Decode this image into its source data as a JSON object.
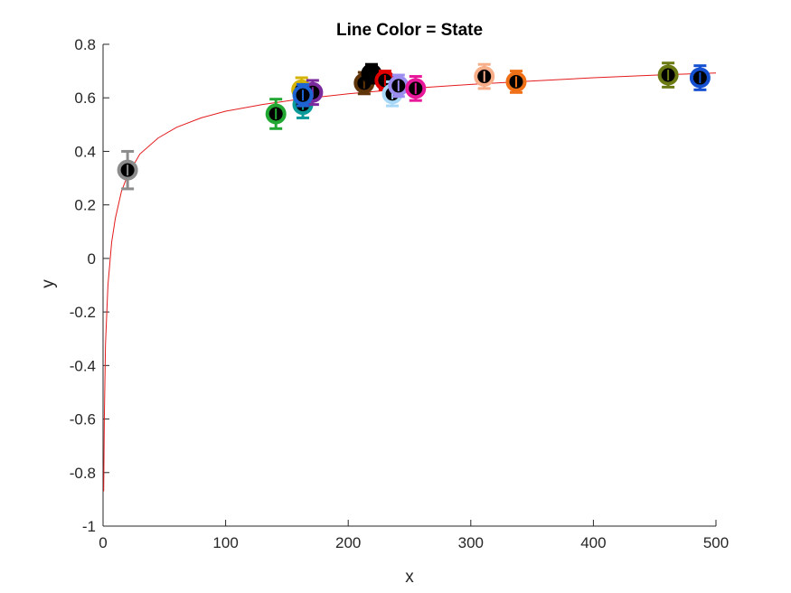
{
  "chart_data": {
    "type": "scatter",
    "title": "Line Color = State",
    "xlabel": "x",
    "ylabel": "y",
    "xlim": [
      0,
      500
    ],
    "ylim": [
      -1,
      0.8
    ],
    "xticks": [
      "0",
      "100",
      "200",
      "300",
      "400",
      "500"
    ],
    "yticks": [
      "-1",
      "-0.8",
      "-0.6",
      "-0.4",
      "-0.2",
      "0",
      "0.2",
      "0.4",
      "0.6",
      "0.8"
    ],
    "xtick_values": [
      0,
      100,
      200,
      300,
      400,
      500
    ],
    "ytick_values": [
      -1,
      -0.8,
      -0.6,
      -0.4,
      -0.2,
      0,
      0.2,
      0.4,
      0.6,
      0.8
    ],
    "grid": false,
    "fit_curve": {
      "color": "#e41a1c",
      "points": [
        [
          0.5,
          -0.87
        ],
        [
          1,
          -0.6
        ],
        [
          2,
          -0.32
        ],
        [
          4,
          -0.1
        ],
        [
          7,
          0.06
        ],
        [
          10,
          0.15
        ],
        [
          15,
          0.25
        ],
        [
          20,
          0.31
        ],
        [
          30,
          0.39
        ],
        [
          45,
          0.45
        ],
        [
          60,
          0.49
        ],
        [
          80,
          0.525
        ],
        [
          100,
          0.55
        ],
        [
          130,
          0.575
        ],
        [
          160,
          0.595
        ],
        [
          200,
          0.615
        ],
        [
          250,
          0.635
        ],
        [
          300,
          0.65
        ],
        [
          350,
          0.663
        ],
        [
          400,
          0.675
        ],
        [
          450,
          0.685
        ],
        [
          500,
          0.693
        ]
      ]
    },
    "points": [
      {
        "x": 20,
        "y": 0.33,
        "err": 0.07,
        "color": "#8c8c8c"
      },
      {
        "x": 141,
        "y": 0.54,
        "err": 0.055,
        "color": "#22a832"
      },
      {
        "x": 162,
        "y": 0.63,
        "err": 0.045,
        "color": "#d4b400"
      },
      {
        "x": 163,
        "y": 0.575,
        "err": 0.05,
        "color": "#0a9a9a"
      },
      {
        "x": 171,
        "y": 0.62,
        "err": 0.045,
        "color": "#7b2a9e"
      },
      {
        "x": 163,
        "y": 0.61,
        "err": 0.04,
        "color": "#1e64d2"
      },
      {
        "x": 213,
        "y": 0.655,
        "err": 0.04,
        "color": "#5e3408"
      },
      {
        "x": 219,
        "y": 0.69,
        "err": 0.035,
        "color": "#000000"
      },
      {
        "x": 230,
        "y": 0.665,
        "err": 0.035,
        "color": "#e00000"
      },
      {
        "x": 236,
        "y": 0.615,
        "err": 0.045,
        "color": "#a8d8f8"
      },
      {
        "x": 241,
        "y": 0.645,
        "err": 0.04,
        "color": "#9b8ef0"
      },
      {
        "x": 255,
        "y": 0.635,
        "err": 0.045,
        "color": "#e8189a"
      },
      {
        "x": 311,
        "y": 0.68,
        "err": 0.045,
        "color": "#f8ae88"
      },
      {
        "x": 337,
        "y": 0.66,
        "err": 0.04,
        "color": "#f07018"
      },
      {
        "x": 461,
        "y": 0.685,
        "err": 0.045,
        "color": "#6b7a12"
      },
      {
        "x": 487,
        "y": 0.675,
        "err": 0.045,
        "color": "#1450d0"
      }
    ]
  }
}
